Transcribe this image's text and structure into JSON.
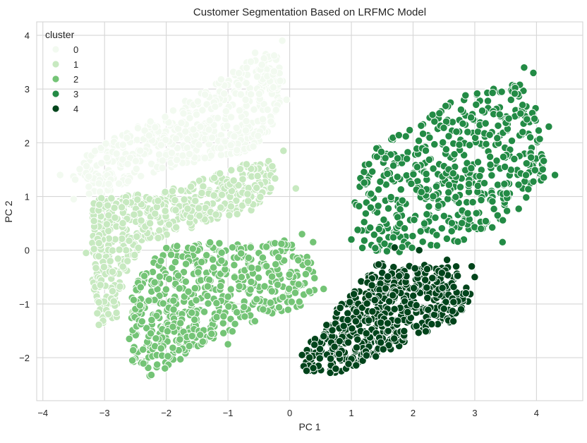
{
  "chart_data": {
    "type": "scatter",
    "title": "Customer Segmentation Based on LRFMC Model",
    "xlabel": "PC 1",
    "ylabel": "PC 2",
    "xlim": [
      -4.1,
      4.75
    ],
    "ylim": [
      -2.8,
      4.25
    ],
    "xticks": [
      -4,
      -3,
      -2,
      -1,
      0,
      1,
      2,
      3,
      4
    ],
    "xtick_labels": [
      "−4",
      "−3",
      "−2",
      "−1",
      "0",
      "1",
      "2",
      "3",
      "4"
    ],
    "yticks": [
      -2,
      -1,
      0,
      1,
      2,
      3,
      4
    ],
    "ytick_labels": [
      "−2",
      "−1",
      "0",
      "1",
      "2",
      "3",
      "4"
    ],
    "grid": true,
    "legend": {
      "title": "cluster",
      "location": "top-left"
    },
    "series": [
      {
        "name": "0",
        "color": "#f2faf0",
        "clusters": [
          {
            "polygon": [
              [
                -3.55,
                1.35
              ],
              [
                -3.2,
                1.9
              ],
              [
                -2.2,
                2.45
              ],
              [
                -1.2,
                3.1
              ],
              [
                -0.5,
                3.75
              ],
              [
                -0.15,
                3.6
              ],
              [
                -0.1,
                3.0
              ],
              [
                -0.3,
                2.2
              ],
              [
                -0.6,
                1.85
              ],
              [
                -1.5,
                1.65
              ],
              [
                -2.4,
                1.35
              ],
              [
                -3.1,
                1.0
              ]
            ],
            "center": [
              -1.3,
              2.2
            ]
          }
        ],
        "outliers": [
          [
            -3.72,
            1.4
          ],
          [
            -3.5,
            0.95
          ],
          [
            -3.25,
            1.05
          ],
          [
            -0.12,
            3.9
          ],
          [
            -0.05,
            2.8
          ],
          [
            -0.45,
            3.45
          ]
        ]
      },
      {
        "name": "1",
        "color": "#c7e9c0",
        "clusters": [
          {
            "polygon": [
              [
                -3.2,
                0.95
              ],
              [
                -2.0,
                1.1
              ],
              [
                -0.8,
                1.6
              ],
              [
                -0.3,
                1.7
              ],
              [
                -0.2,
                1.2
              ],
              [
                -0.6,
                0.75
              ],
              [
                -1.5,
                0.45
              ],
              [
                -2.4,
                0.1
              ],
              [
                -2.7,
                -0.6
              ],
              [
                -2.8,
                -1.25
              ],
              [
                -3.1,
                -1.4
              ],
              [
                -3.2,
                -0.5
              ]
            ],
            "center": [
              -2.2,
              0.3
            ]
          }
        ],
        "outliers": [
          [
            -0.1,
            1.85
          ],
          [
            0.1,
            1.15
          ],
          [
            -1.9,
            1.1
          ],
          [
            -1.6,
            1.18
          ],
          [
            -0.7,
            1.6
          ],
          [
            -3.3,
            -0.05
          ],
          [
            -2.55,
            -1.15
          ],
          [
            -2.85,
            -0.95
          ]
        ]
      },
      {
        "name": "2",
        "color": "#74c476",
        "clusters": [
          {
            "polygon": [
              [
                -2.6,
                -0.6
              ],
              [
                -2.0,
                0.05
              ],
              [
                -1.2,
                0.2
              ],
              [
                -0.6,
                0.15
              ],
              [
                -0.1,
                0.2
              ],
              [
                0.3,
                -0.05
              ],
              [
                0.45,
                -0.6
              ],
              [
                0.4,
                -0.95
              ],
              [
                -0.5,
                -1.3
              ],
              [
                -1.5,
                -1.8
              ],
              [
                -2.05,
                -2.35
              ],
              [
                -2.55,
                -2.35
              ],
              [
                -2.55,
                -1.7
              ]
            ],
            "center": [
              -1.2,
              -0.9
            ]
          }
        ],
        "outliers": [
          [
            0.2,
            0.3
          ],
          [
            0.38,
            0.15
          ],
          [
            0.55,
            -0.72
          ],
          [
            -2.6,
            -1.65
          ],
          [
            -2.55,
            -2.05
          ],
          [
            -1.0,
            -1.75
          ]
        ]
      },
      {
        "name": "3",
        "color": "#238b45",
        "clusters": [
          {
            "polygon": [
              [
                1.05,
                0.2
              ],
              [
                1.05,
                1.2
              ],
              [
                1.3,
                1.9
              ],
              [
                2.0,
                2.3
              ],
              [
                2.7,
                2.85
              ],
              [
                3.3,
                3.1
              ],
              [
                3.9,
                3.1
              ],
              [
                4.1,
                2.3
              ],
              [
                4.15,
                1.3
              ],
              [
                3.7,
                0.75
              ],
              [
                3.2,
                0.3
              ],
              [
                2.4,
                0.05
              ],
              [
                1.7,
                -0.05
              ],
              [
                1.2,
                -0.05
              ]
            ],
            "center": [
              2.6,
              1.4
            ]
          }
        ],
        "outliers": [
          [
            3.8,
            3.4
          ],
          [
            3.95,
            3.3
          ],
          [
            3.55,
            2.45
          ],
          [
            4.3,
            1.4
          ],
          [
            4.2,
            2.3
          ],
          [
            1.0,
            0.2
          ],
          [
            3.45,
            0.15
          ],
          [
            3.1,
            0.4
          ]
        ]
      },
      {
        "name": "4",
        "color": "#00441b",
        "clusters": [
          {
            "polygon": [
              [
                0.15,
                -2.3
              ],
              [
                0.3,
                -1.7
              ],
              [
                0.9,
                -0.9
              ],
              [
                1.4,
                -0.25
              ],
              [
                2.0,
                -0.25
              ],
              [
                2.7,
                -0.3
              ],
              [
                2.95,
                -0.85
              ],
              [
                2.75,
                -1.3
              ],
              [
                2.1,
                -1.6
              ],
              [
                1.4,
                -2.0
              ],
              [
                0.8,
                -2.3
              ]
            ],
            "center": [
              1.6,
              -1.2
            ]
          }
        ],
        "outliers": [
          [
            2.1,
            0.0
          ],
          [
            2.95,
            -0.3
          ],
          [
            3.0,
            -0.5
          ],
          [
            0.2,
            -1.95
          ],
          [
            1.7,
            0.05
          ],
          [
            2.55,
            -0.18
          ]
        ]
      }
    ]
  }
}
